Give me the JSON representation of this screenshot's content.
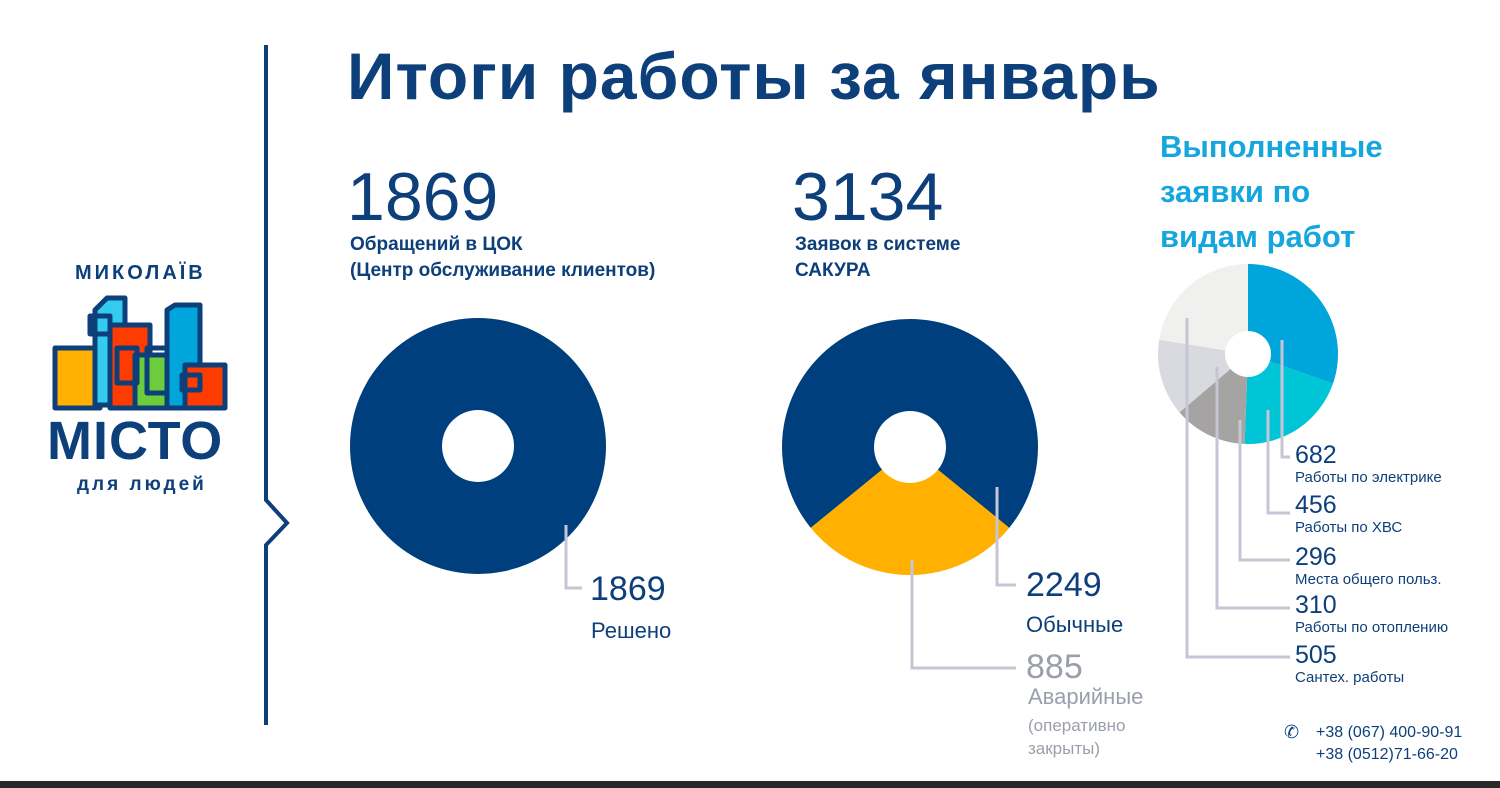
{
  "title": "Итоги работы за январь",
  "logo": {
    "city": "МИКОЛАЇВ",
    "name": "МІСТО",
    "tagline": "для людей"
  },
  "stat1": {
    "value": "1869",
    "label_line1": "Обращений в ЦОК",
    "label_line2": "(Центр обслуживание клиентов)"
  },
  "stat2": {
    "value": "3134",
    "label_line1": "Заявок в системе",
    "label_line2": "САКУРА"
  },
  "stat3": {
    "heading_line1": "Выполненные",
    "heading_line2": "заявки по",
    "heading_line3": "видам работ"
  },
  "chart_data": [
    {
      "type": "pie",
      "title": "Обращений в ЦОК",
      "slices": [
        {
          "label": "Решено",
          "value": 1869,
          "color": "#003f7d"
        }
      ],
      "labels": {
        "value": "1869",
        "name": "Решено"
      }
    },
    {
      "type": "pie",
      "title": "Заявок в системе САКУРА",
      "slices": [
        {
          "label": "Обычные",
          "value": 2249,
          "color": "#003f7d"
        },
        {
          "label": "Аварийные (оперативно закрыты)",
          "value": 885,
          "color": "#ffb000"
        }
      ],
      "labels": {
        "normal_value": "2249",
        "normal_name": "Обычные",
        "emerg_value": "885",
        "emerg_name": "Аварийные",
        "emerg_note1": "(оперативно",
        "emerg_note2": "закрыты)"
      }
    },
    {
      "type": "pie",
      "title": "Выполненные заявки по видам работ",
      "slices": [
        {
          "label": "Работы по электрике",
          "value": 682,
          "color": "#00a5dc"
        },
        {
          "label": "Работы по ХВС",
          "value": 456,
          "color": "#00c5d6"
        },
        {
          "label": "Места общего польз.",
          "value": 296,
          "color": "#a6a4a2"
        },
        {
          "label": "Работы по отоплению",
          "value": 310,
          "color": "#d9dadf"
        },
        {
          "label": "Сантех. работы",
          "value": 505,
          "color": "#f0f0ef"
        }
      ],
      "labels": [
        {
          "value": "682",
          "name": "Работы по электрике"
        },
        {
          "value": "456",
          "name": "Работы по ХВС"
        },
        {
          "value": "296",
          "name": "Места общего польз."
        },
        {
          "value": "310",
          "name": "Работы по отоплению"
        },
        {
          "value": "505",
          "name": "Сантех. работы"
        }
      ]
    }
  ],
  "contacts": {
    "phone1": "+38 (067) 400-90-91",
    "phone2": "+38 (0512)71-66-20"
  },
  "colors": {
    "navy": "#0d3f7a",
    "accent": "#16a6de",
    "yellow": "#ffb000",
    "leader": "#c5c5d6"
  }
}
